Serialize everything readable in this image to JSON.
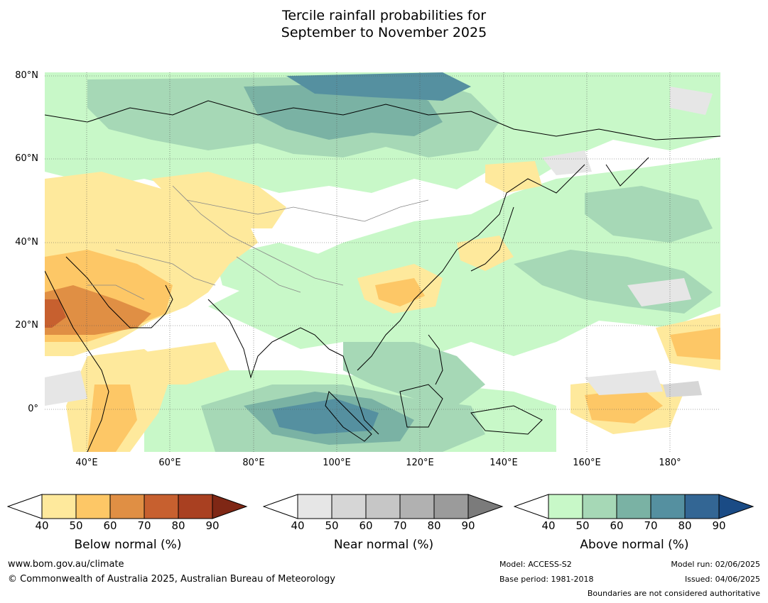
{
  "title_line1": "Tercile rainfall probabilities for",
  "title_line2": "September to November 2025",
  "map": {
    "lon_range": [
      30,
      192
    ],
    "lat_range": [
      -10,
      81
    ],
    "lat_labels": [
      "80°N",
      "60°N",
      "40°N",
      "20°N",
      "0°"
    ],
    "lon_labels": [
      "40°E",
      "60°E",
      "80°E",
      "100°E",
      "120°E",
      "140°E",
      "160°E",
      "180°"
    ],
    "colors": {
      "ocean_land_base": "#ffffff",
      "coastline": "#000000",
      "country_border": "#888888",
      "gridline": "#555555"
    }
  },
  "legends": [
    {
      "label": "Below normal (%)",
      "ticks": [
        "40",
        "50",
        "60",
        "70",
        "80",
        "90"
      ],
      "colors": [
        "#ffffff",
        "#fee99c",
        "#fdc766",
        "#e08f44",
        "#c7602f",
        "#a94021",
        "#7f2715"
      ]
    },
    {
      "label": "Near normal (%)",
      "ticks": [
        "40",
        "50",
        "60",
        "70",
        "80",
        "90"
      ],
      "colors": [
        "#ffffff",
        "#e6e6e6",
        "#d6d6d6",
        "#c6c6c6",
        "#b1b1b1",
        "#9b9b9b",
        "#7b7b7b"
      ]
    },
    {
      "label": "Above normal (%)",
      "ticks": [
        "40",
        "50",
        "60",
        "70",
        "80",
        "90"
      ],
      "colors": [
        "#ffffff",
        "#c8f8c8",
        "#a6d8b6",
        "#7ab2a4",
        "#5590a0",
        "#336694",
        "#1a4b85"
      ]
    }
  ],
  "footer": {
    "website": "www.bom.gov.au/climate",
    "copyright": "© Commonwealth of Australia 2025, Australian Bureau of Meteorology",
    "model": "Model: ACCESS-S2",
    "base_period": "Base period: 1981-2018",
    "model_run": "Model run: 02/06/2025",
    "issued": "Issued: 04/06/2025",
    "boundaries_note": "Boundaries are not considered authoritative"
  }
}
